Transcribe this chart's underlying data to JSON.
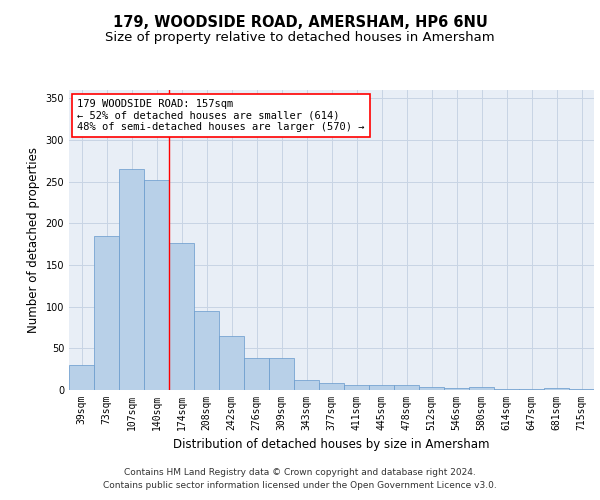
{
  "title1": "179, WOODSIDE ROAD, AMERSHAM, HP6 6NU",
  "title2": "Size of property relative to detached houses in Amersham",
  "xlabel": "Distribution of detached houses by size in Amersham",
  "ylabel": "Number of detached properties",
  "categories": [
    "39sqm",
    "73sqm",
    "107sqm",
    "140sqm",
    "174sqm",
    "208sqm",
    "242sqm",
    "276sqm",
    "309sqm",
    "343sqm",
    "377sqm",
    "411sqm",
    "445sqm",
    "478sqm",
    "512sqm",
    "546sqm",
    "580sqm",
    "614sqm",
    "647sqm",
    "681sqm",
    "715sqm"
  ],
  "values": [
    30,
    185,
    265,
    252,
    176,
    95,
    65,
    39,
    39,
    12,
    8,
    6,
    6,
    6,
    4,
    2,
    4,
    1,
    1,
    2,
    1
  ],
  "bar_color": "#b8d0e8",
  "bar_edge_color": "#6699cc",
  "grid_color": "#c8d4e4",
  "background_color": "#e8eef6",
  "vline_color": "red",
  "vline_x": 3.5,
  "annotation_text": "179 WOODSIDE ROAD: 157sqm\n← 52% of detached houses are smaller (614)\n48% of semi-detached houses are larger (570) →",
  "annotation_box_color": "white",
  "annotation_box_edge": "red",
  "ylim": [
    0,
    360
  ],
  "yticks": [
    0,
    50,
    100,
    150,
    200,
    250,
    300,
    350
  ],
  "footer1": "Contains HM Land Registry data © Crown copyright and database right 2024.",
  "footer2": "Contains public sector information licensed under the Open Government Licence v3.0.",
  "title_fontsize": 10.5,
  "subtitle_fontsize": 9.5,
  "xlabel_fontsize": 8.5,
  "ylabel_fontsize": 8.5,
  "tick_fontsize": 7,
  "annotation_fontsize": 7.5,
  "footer_fontsize": 6.5
}
